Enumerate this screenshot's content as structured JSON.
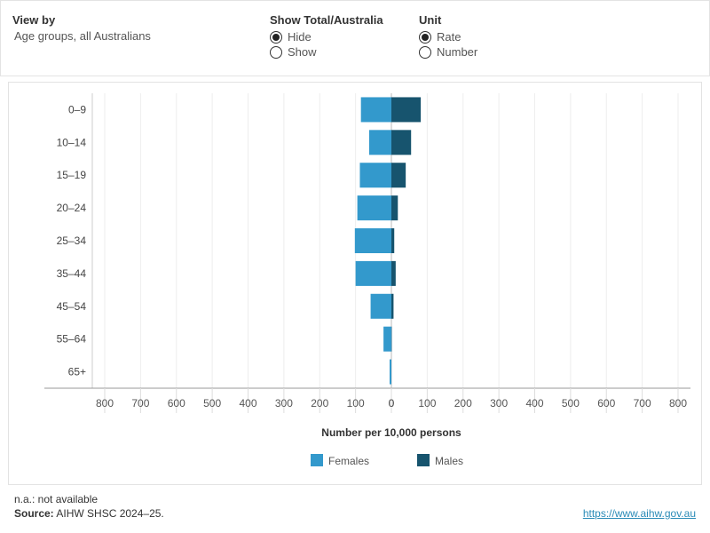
{
  "controls": {
    "view_by": {
      "title": "View by",
      "value": "Age groups, all Australians"
    },
    "show_total": {
      "title": "Show Total/Australia",
      "options": [
        "Hide",
        "Show"
      ],
      "selected": "Hide"
    },
    "unit": {
      "title": "Unit",
      "options": [
        "Rate",
        "Number"
      ],
      "selected": "Rate"
    }
  },
  "chart_data": {
    "type": "bar",
    "orientation": "horizontal-population-pyramid",
    "categories": [
      "0–9",
      "10–14",
      "15–19",
      "20–24",
      "25–34",
      "35–44",
      "45–54",
      "55–64",
      "65+"
    ],
    "series": [
      {
        "name": "Females",
        "color": "#3399cc",
        "values": [
          85,
          62,
          88,
          95,
          102,
          100,
          58,
          22,
          5
        ]
      },
      {
        "name": "Males",
        "color": "#17546e",
        "values": [
          82,
          55,
          40,
          18,
          8,
          12,
          6,
          1,
          0
        ]
      }
    ],
    "xlabel": "Number per 10,000 persons",
    "x_ticks": [
      "800",
      "700",
      "600",
      "500",
      "400",
      "300",
      "200",
      "100",
      "0",
      "0",
      "100",
      "200",
      "300",
      "400",
      "500",
      "600",
      "700",
      "800"
    ],
    "xlim": [
      -800,
      800
    ],
    "grid": "vertical",
    "legend_position": "bottom"
  },
  "footer": {
    "note": "n.a.: not available",
    "source_label": "Source:",
    "source_text": "AIHW SHSC 2024–25.",
    "link": "https://www.aihw.gov.au"
  }
}
